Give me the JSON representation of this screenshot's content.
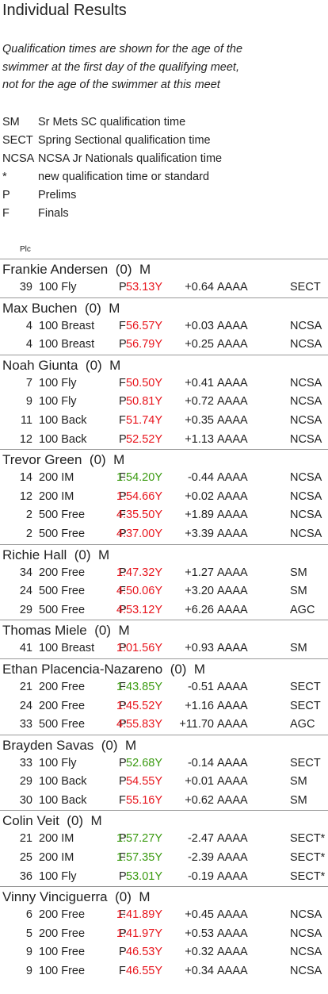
{
  "title": "Individual Results",
  "note_lines": [
    "Qualification times are shown for the age of the",
    "swimmer at the first day of the qualifying meet,",
    "not for the age of the swimmer at this meet"
  ],
  "legend": [
    {
      "code": "SM",
      "desc": "Sr Mets SC qualification time"
    },
    {
      "code": "SECT",
      "desc": "Spring Sectional qualification time"
    },
    {
      "code": "NCSA",
      "desc": "NCSA Jr Nationals qualification time"
    },
    {
      "code": "*",
      "desc": "new qualification time or standard"
    },
    {
      "code": "P",
      "desc": "Prelims"
    },
    {
      "code": "F",
      "desc": "Finals"
    }
  ],
  "plc_header": "Plc",
  "swimmers": [
    {
      "name": "Frankie Andersen",
      "age": "(0)",
      "gender": "M",
      "results": [
        {
          "place": "39",
          "event": "100 Fly",
          "round": "P",
          "time": "53.13Y",
          "color": "#e8141c",
          "diff": "+0.64",
          "level": "AAAA",
          "standard": "SECT"
        }
      ]
    },
    {
      "name": "Max Buchen",
      "age": "(0)",
      "gender": "M",
      "results": [
        {
          "place": "4",
          "event": "100 Breast",
          "round": "F",
          "time": "56.57Y",
          "color": "#e8141c",
          "diff": "+0.03",
          "level": "AAAA",
          "standard": "NCSA"
        },
        {
          "place": "4",
          "event": "100 Breast",
          "round": "P",
          "time": "56.79Y",
          "color": "#e8141c",
          "diff": "+0.25",
          "level": "AAAA",
          "standard": "NCSA"
        }
      ]
    },
    {
      "name": "Noah Giunta",
      "age": "(0)",
      "gender": "M",
      "results": [
        {
          "place": "7",
          "event": "100 Fly",
          "round": "F",
          "time": "50.50Y",
          "color": "#e8141c",
          "diff": "+0.41",
          "level": "AAAA",
          "standard": "NCSA"
        },
        {
          "place": "9",
          "event": "100 Fly",
          "round": "P",
          "time": "50.81Y",
          "color": "#e8141c",
          "diff": "+0.72",
          "level": "AAAA",
          "standard": "NCSA"
        },
        {
          "place": "11",
          "event": "100 Back",
          "round": "F",
          "time": "51.74Y",
          "color": "#e8141c",
          "diff": "+0.35",
          "level": "AAAA",
          "standard": "NCSA"
        },
        {
          "place": "12",
          "event": "100 Back",
          "round": "P",
          "time": "52.52Y",
          "color": "#e8141c",
          "diff": "+1.13",
          "level": "AAAA",
          "standard": "NCSA"
        }
      ]
    },
    {
      "name": "Trevor Green",
      "age": "(0)",
      "gender": "M",
      "results": [
        {
          "place": "14",
          "event": "200 IM",
          "round": "F",
          "time": "1:54.20Y",
          "color": "#3a9a10",
          "diff": "-0.44",
          "level": "AAAA",
          "standard": "NCSA"
        },
        {
          "place": "12",
          "event": "200 IM",
          "round": "P",
          "time": "1:54.66Y",
          "color": "#e8141c",
          "diff": "+0.02",
          "level": "AAAA",
          "standard": "NCSA"
        },
        {
          "place": "2",
          "event": "500 Free",
          "round": "F",
          "time": "4:35.50Y",
          "color": "#e8141c",
          "diff": "+1.89",
          "level": "AAAA",
          "standard": "NCSA"
        },
        {
          "place": "2",
          "event": "500 Free",
          "round": "P",
          "time": "4:37.00Y",
          "color": "#e8141c",
          "diff": "+3.39",
          "level": "AAAA",
          "standard": "NCSA"
        }
      ]
    },
    {
      "name": "Richie Hall",
      "age": "(0)",
      "gender": "M",
      "results": [
        {
          "place": "34",
          "event": "200 Free",
          "round": "P",
          "time": "1:47.32Y",
          "color": "#e8141c",
          "diff": "+1.27",
          "level": "AAAA",
          "standard": "SM"
        },
        {
          "place": "24",
          "event": "500 Free",
          "round": "F",
          "time": "4:50.06Y",
          "color": "#e8141c",
          "diff": "+3.20",
          "level": "AAAA",
          "standard": "SM"
        },
        {
          "place": "29",
          "event": "500 Free",
          "round": "P",
          "time": "4:53.12Y",
          "color": "#e8141c",
          "diff": "+6.26",
          "level": "AAAA",
          "standard": "AGC"
        }
      ]
    },
    {
      "name": "Thomas Miele",
      "age": "(0)",
      "gender": "M",
      "results": [
        {
          "place": "41",
          "event": "100 Breast",
          "round": "P",
          "time": "1:01.56Y",
          "color": "#e8141c",
          "diff": "+0.93",
          "level": "AAAA",
          "standard": "SM"
        }
      ]
    },
    {
      "name": "Ethan Placencia-Nazareno",
      "age": "(0)",
      "gender": "M",
      "results": [
        {
          "place": "21",
          "event": "200 Free",
          "round": "F",
          "time": "1:43.85Y",
          "color": "#3a9a10",
          "diff": "-0.51",
          "level": "AAAA",
          "standard": "SECT"
        },
        {
          "place": "24",
          "event": "200 Free",
          "round": "P",
          "time": "1:45.52Y",
          "color": "#e8141c",
          "diff": "+1.16",
          "level": "AAAA",
          "standard": "SECT"
        },
        {
          "place": "33",
          "event": "500 Free",
          "round": "P",
          "time": "4:55.83Y",
          "color": "#e8141c",
          "diff": "+11.70",
          "level": "AAAA",
          "standard": "AGC"
        }
      ]
    },
    {
      "name": "Brayden Savas",
      "age": "(0)",
      "gender": "M",
      "results": [
        {
          "place": "33",
          "event": "100 Fly",
          "round": "P",
          "time": "52.68Y",
          "color": "#3a9a10",
          "diff": "-0.14",
          "level": "AAAA",
          "standard": "SECT"
        },
        {
          "place": "29",
          "event": "100 Back",
          "round": "P",
          "time": "54.55Y",
          "color": "#e8141c",
          "diff": "+0.01",
          "level": "AAAA",
          "standard": "SM"
        },
        {
          "place": "30",
          "event": "100 Back",
          "round": "F",
          "time": "55.16Y",
          "color": "#e8141c",
          "diff": "+0.62",
          "level": "AAAA",
          "standard": "SM"
        }
      ]
    },
    {
      "name": "Colin Veit",
      "age": "(0)",
      "gender": "M",
      "results": [
        {
          "place": "21",
          "event": "200 IM",
          "round": "P",
          "time": "1:57.27Y",
          "color": "#3a9a10",
          "diff": "-2.47",
          "level": "AAAA",
          "standard": "SECT*"
        },
        {
          "place": "25",
          "event": "200 IM",
          "round": "F",
          "time": "1:57.35Y",
          "color": "#3a9a10",
          "diff": "-2.39",
          "level": "AAAA",
          "standard": "SECT*"
        },
        {
          "place": "36",
          "event": "100 Fly",
          "round": "P",
          "time": "53.01Y",
          "color": "#3a9a10",
          "diff": "-0.19",
          "level": "AAAA",
          "standard": "SECT*"
        }
      ]
    },
    {
      "name": "Vinny Vinciguerra",
      "age": "(0)",
      "gender": "M",
      "results": [
        {
          "place": "6",
          "event": "200 Free",
          "round": "F",
          "time": "1:41.89Y",
          "color": "#e8141c",
          "diff": "+0.45",
          "level": "AAAA",
          "standard": "NCSA"
        },
        {
          "place": "5",
          "event": "200 Free",
          "round": "P",
          "time": "1:41.97Y",
          "color": "#e8141c",
          "diff": "+0.53",
          "level": "AAAA",
          "standard": "NCSA"
        },
        {
          "place": "9",
          "event": "100 Free",
          "round": "P",
          "time": "46.53Y",
          "color": "#e8141c",
          "diff": "+0.32",
          "level": "AAAA",
          "standard": "NCSA"
        },
        {
          "place": "9",
          "event": "100 Free",
          "round": "F",
          "time": "46.55Y",
          "color": "#e8141c",
          "diff": "+0.34",
          "level": "AAAA",
          "standard": "NCSA"
        }
      ]
    }
  ]
}
